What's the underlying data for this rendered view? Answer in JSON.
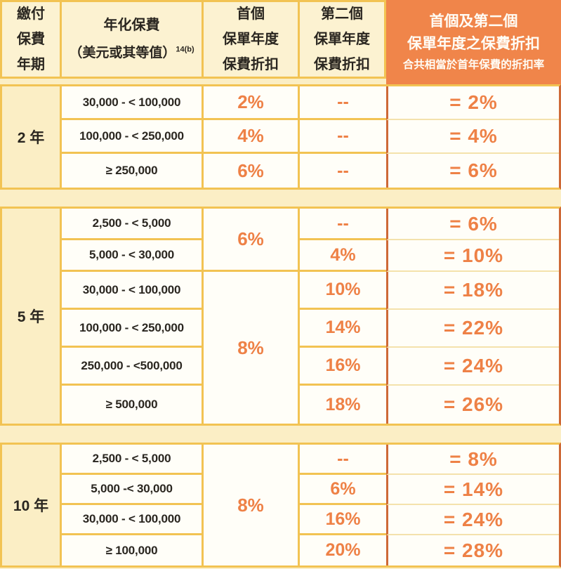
{
  "colors": {
    "page_background": "#FBEEC5",
    "cell_background": "#FFFEF8",
    "border_gold": "#F2C353",
    "border_dark_orange": "#CE6937",
    "header_highlight_orange": "#F0854A",
    "discount_text_orange": "#EE8146",
    "text_dark": "#2A2620"
  },
  "table": {
    "header": {
      "payment_term": {
        "lines": [
          "繳付",
          "保費",
          "年期"
        ]
      },
      "annualized_premium": {
        "line1": "年化保費",
        "line2": "（美元或其等值）",
        "superscript": "14(b)"
      },
      "first_year": {
        "lines": [
          "首個",
          "保單年度",
          "保費折扣"
        ]
      },
      "second_year": {
        "lines": [
          "第二個",
          "保單年度",
          "保費折扣"
        ]
      },
      "combined": {
        "line1": "首個及第二個",
        "line2": "保單年度之保費折扣",
        "line3": "合共相當於首年保費的折扣率"
      }
    },
    "sections": [
      {
        "year": "2 年",
        "ranges": [
          "30,000 - < 100,000",
          "100,000 - < 250,000",
          "≥ 250,000"
        ],
        "first_groups": [
          {
            "label": "2%",
            "rows": 1
          },
          {
            "label": "4%",
            "rows": 1
          },
          {
            "label": "6%",
            "rows": 1
          }
        ],
        "second": [
          "--",
          "--",
          "--"
        ],
        "combined": [
          "= 2%",
          "= 4%",
          "= 6%"
        ]
      },
      {
        "year": "5 年",
        "ranges": [
          "2,500 - < 5,000",
          "5,000 - < 30,000",
          "30,000 - < 100,000",
          "100,000 - < 250,000",
          "250,000 - <500,000",
          "≥ 500,000"
        ],
        "first_groups": [
          {
            "label": "6%",
            "rows": 2
          },
          {
            "label": "8%",
            "rows": 4
          }
        ],
        "second": [
          "--",
          "4%",
          "10%",
          "14%",
          "16%",
          "18%"
        ],
        "combined": [
          "= 6%",
          "= 10%",
          "= 18%",
          "= 22%",
          "= 24%",
          "= 26%"
        ]
      },
      {
        "year": "10 年",
        "ranges": [
          "2,500 - < 5,000",
          "5,000 -< 30,000",
          "30,000 - < 100,000",
          "≥ 100,000"
        ],
        "first_groups": [
          {
            "label": "8%",
            "rows": 4
          }
        ],
        "second": [
          "--",
          "6%",
          "16%",
          "20%"
        ],
        "combined": [
          "= 8%",
          "= 14%",
          "= 24%",
          "= 28%"
        ]
      }
    ]
  }
}
